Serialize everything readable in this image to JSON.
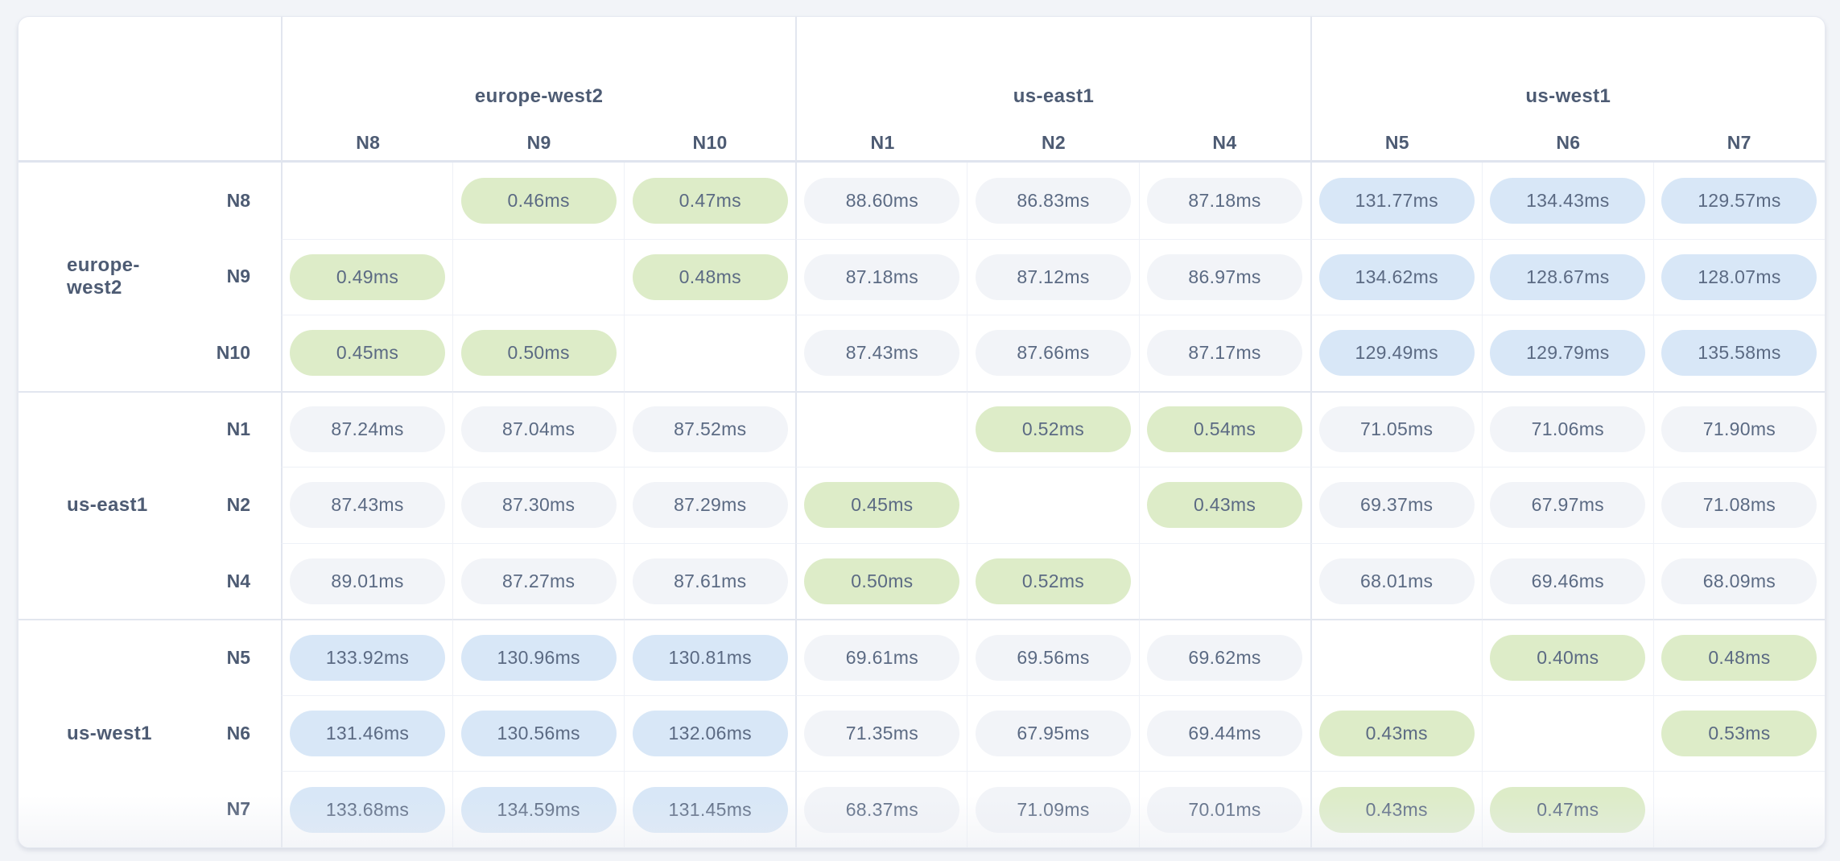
{
  "page": {
    "background": "#f2f4f8",
    "surface": "#ffffff"
  },
  "palette": {
    "low_latency_badge": "#ddecc8",
    "mid_latency_badge": "#f2f4f8",
    "high_latency_badge": "#d8e7f7",
    "label_text": "#4d5b73",
    "value_text": "#5b6a83",
    "group_separator": "#e2e6ef",
    "cell_line": "#eef1f7"
  },
  "chart_data": {
    "type": "heatmap",
    "title": "",
    "unit": "ms",
    "tone_thresholds": {
      "low_below": 1,
      "mid_below": 100
    },
    "columns": {
      "groups": [
        {
          "region": "europe-west2",
          "nodes": [
            "N8",
            "N9",
            "N10"
          ]
        },
        {
          "region": "us-east1",
          "nodes": [
            "N1",
            "N2",
            "N4"
          ]
        },
        {
          "region": "us-west1",
          "nodes": [
            "N5",
            "N6",
            "N7"
          ]
        }
      ]
    },
    "rows": {
      "groups": [
        {
          "region": "europe-west2",
          "rows": [
            {
              "node": "N8",
              "values": [
                null,
                0.46,
                0.47,
                88.6,
                86.83,
                87.18,
                131.77,
                134.43,
                129.57
              ]
            },
            {
              "node": "N9",
              "values": [
                0.49,
                null,
                0.48,
                87.18,
                87.12,
                86.97,
                134.62,
                128.67,
                128.07
              ]
            },
            {
              "node": "N10",
              "values": [
                0.45,
                0.5,
                null,
                87.43,
                87.66,
                87.17,
                129.49,
                129.79,
                135.58
              ]
            }
          ]
        },
        {
          "region": "us-east1",
          "rows": [
            {
              "node": "N1",
              "values": [
                87.24,
                87.04,
                87.52,
                null,
                0.52,
                0.54,
                71.05,
                71.06,
                71.9
              ]
            },
            {
              "node": "N2",
              "values": [
                87.43,
                87.3,
                87.29,
                0.45,
                null,
                0.43,
                69.37,
                67.97,
                71.08
              ]
            },
            {
              "node": "N4",
              "values": [
                89.01,
                87.27,
                87.61,
                0.5,
                0.52,
                null,
                68.01,
                69.46,
                68.09
              ]
            }
          ]
        },
        {
          "region": "us-west1",
          "rows": [
            {
              "node": "N5",
              "values": [
                133.92,
                130.96,
                130.81,
                69.61,
                69.56,
                69.62,
                null,
                0.4,
                0.48
              ]
            },
            {
              "node": "N6",
              "values": [
                131.46,
                130.56,
                132.06,
                71.35,
                67.95,
                69.44,
                0.43,
                null,
                0.53
              ]
            },
            {
              "node": "N7",
              "values": [
                133.68,
                134.59,
                131.45,
                68.37,
                71.09,
                70.01,
                0.43,
                0.47,
                null
              ]
            }
          ]
        }
      ]
    }
  }
}
